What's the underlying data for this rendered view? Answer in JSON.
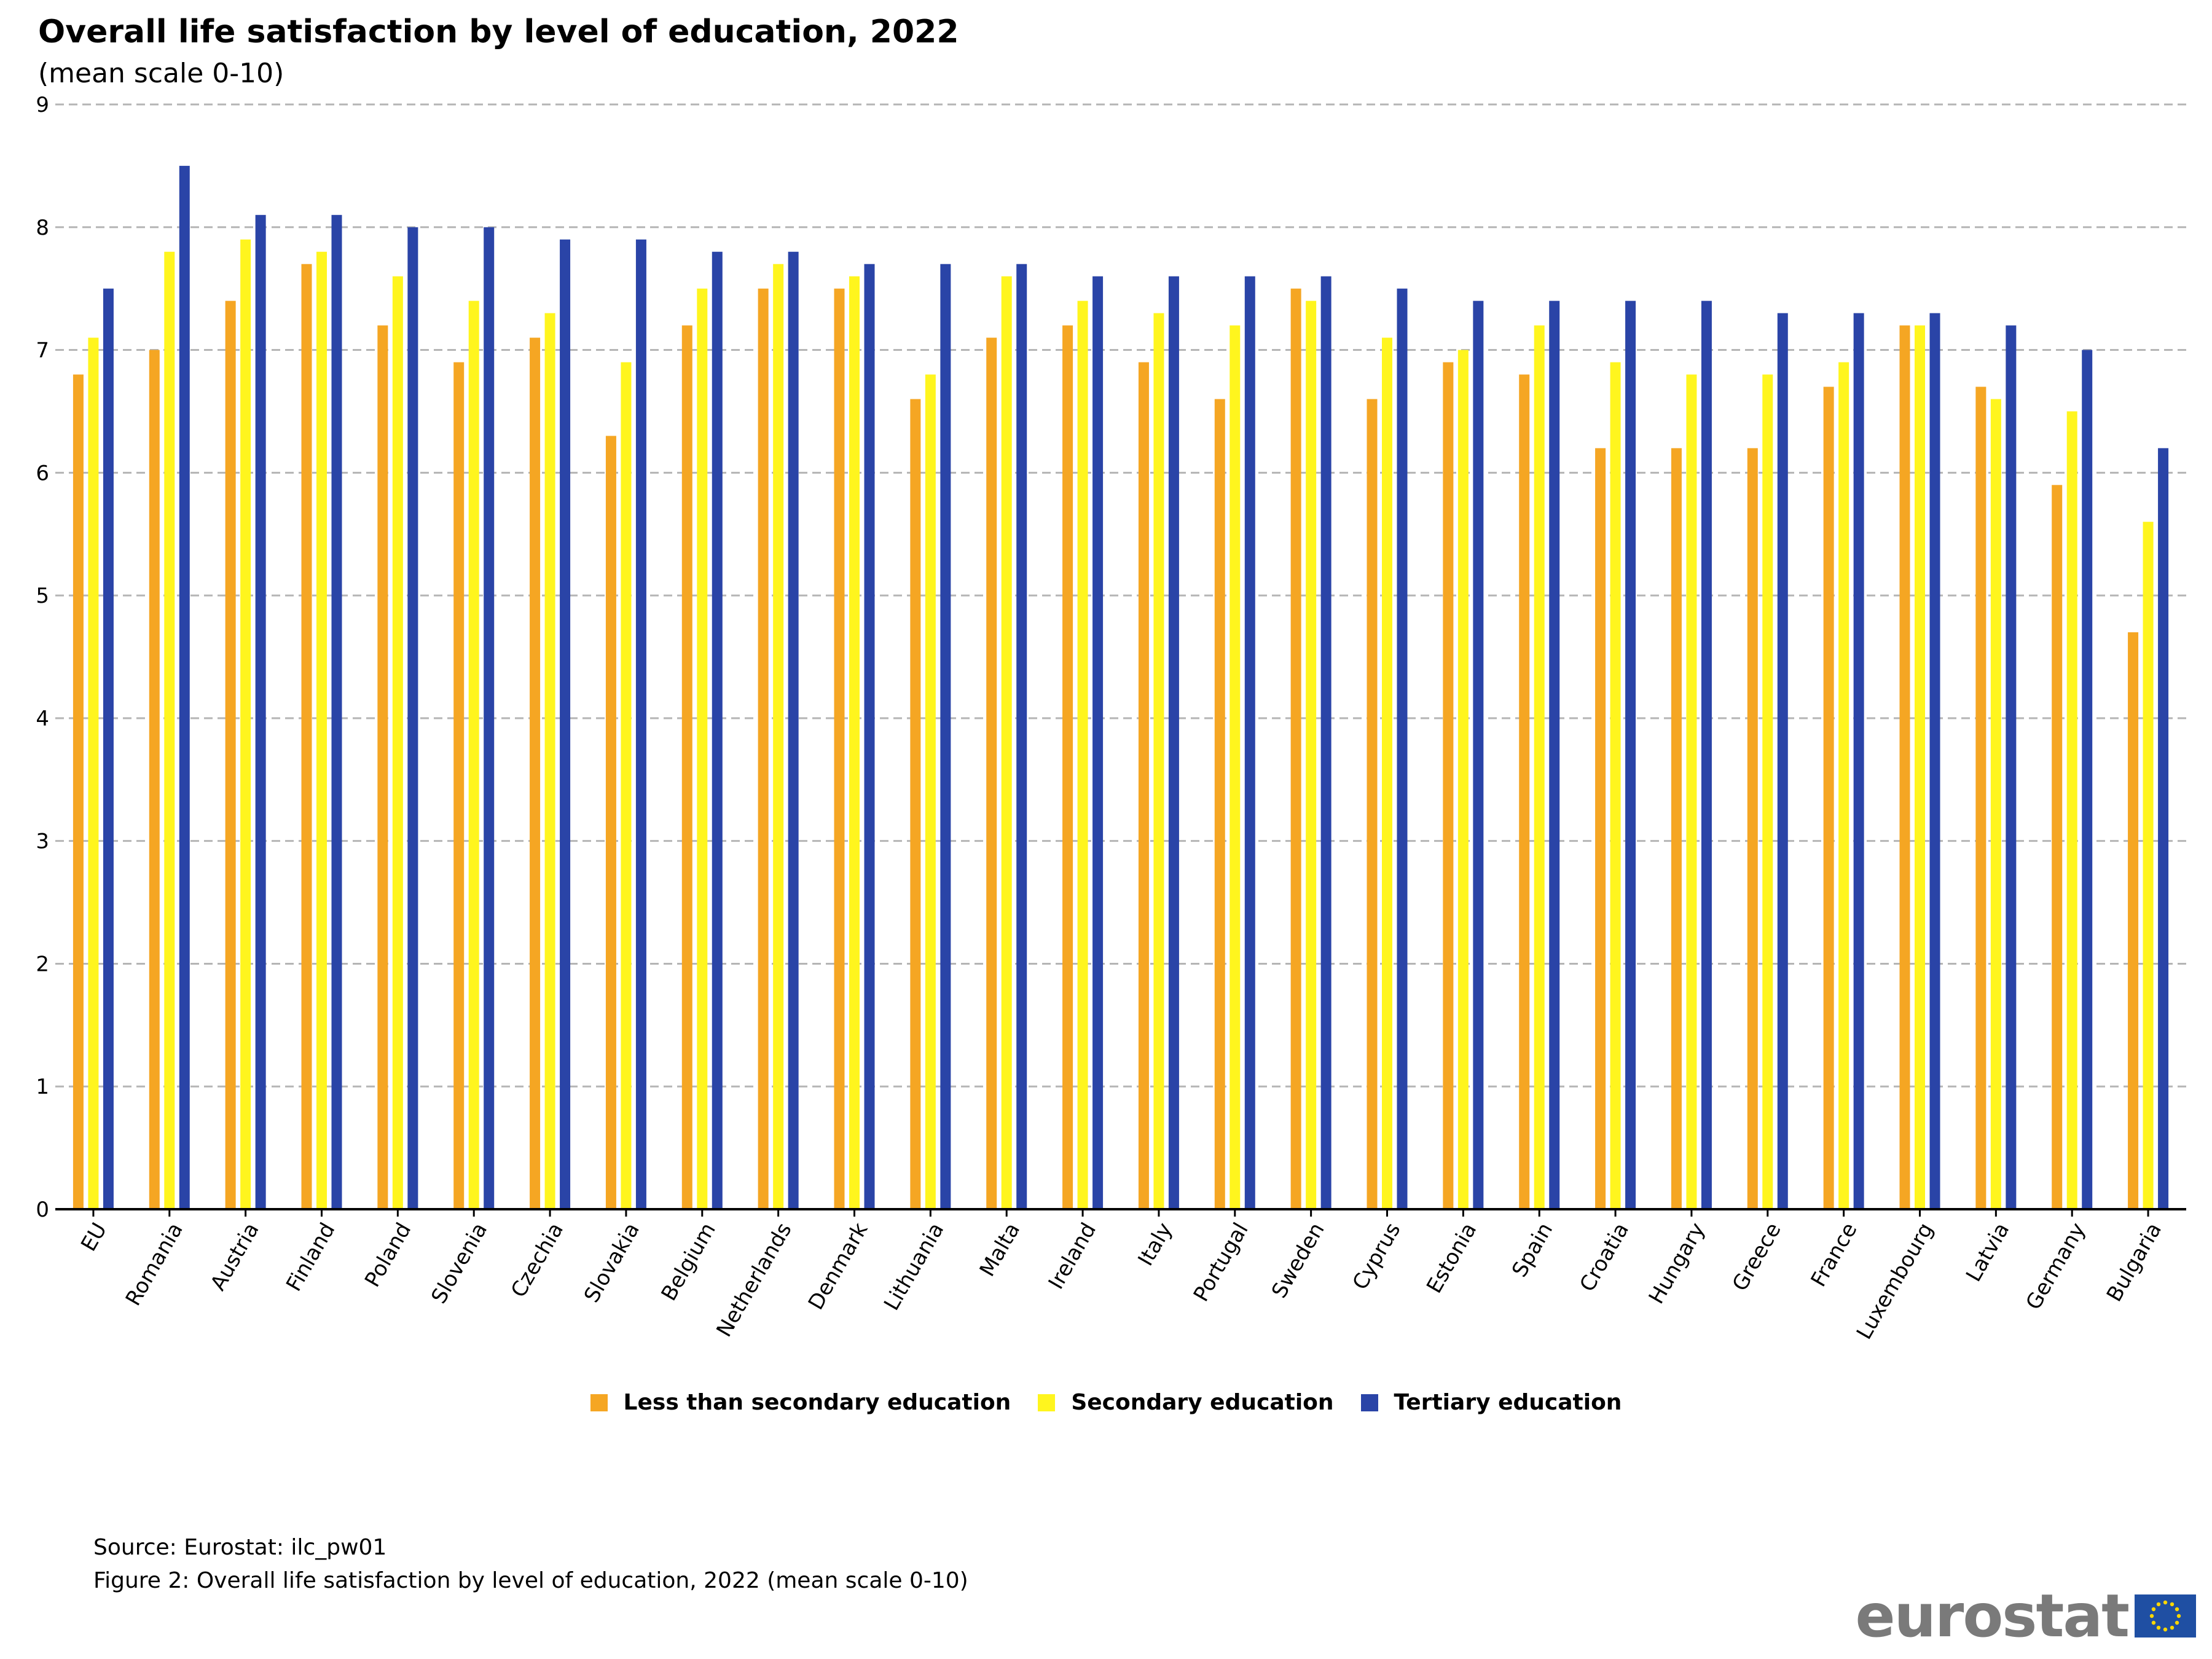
{
  "title": "Overall life satisfaction by level of education, 2022",
  "subtitle": "(mean scale 0-10)",
  "footer": {
    "source": "Source: Eurostat: ilc_pw01",
    "caption": "Figure 2: Overall life satisfaction by level of education, 2022 (mean scale 0-10)"
  },
  "logo": {
    "text": "eurostat"
  },
  "colors": {
    "less": "#F5A623",
    "secondary": "#FFF51E",
    "tertiary": "#2A44A7",
    "grid": "#b5b5b5"
  },
  "chart_data": {
    "type": "bar",
    "title": "Overall life satisfaction by level of education, 2022",
    "subtitle": "(mean scale 0-10)",
    "xlabel": "",
    "ylabel": "",
    "ylim": [
      0,
      9
    ],
    "yticks": [
      0,
      1,
      2,
      3,
      4,
      5,
      6,
      7,
      8,
      9
    ],
    "grid": true,
    "legend_position": "bottom",
    "categories": [
      "EU",
      "Romania",
      "Austria",
      "Finland",
      "Poland",
      "Slovenia",
      "Czechia",
      "Slovakia",
      "Belgium",
      "Netherlands",
      "Denmark",
      "Lithuania",
      "Malta",
      "Ireland",
      "Italy",
      "Portugal",
      "Sweden",
      "Cyprus",
      "Estonia",
      "Spain",
      "Croatia",
      "Hungary",
      "Greece",
      "France",
      "Luxembourg",
      "Latvia",
      "Germany",
      "Bulgaria"
    ],
    "series": [
      {
        "name": "Less than secondary education",
        "color": "#F5A623",
        "values": [
          6.8,
          7.0,
          7.4,
          7.7,
          7.2,
          6.9,
          7.1,
          6.3,
          7.2,
          7.5,
          7.5,
          6.6,
          7.1,
          7.2,
          6.9,
          6.6,
          7.5,
          6.6,
          6.9,
          6.8,
          6.2,
          6.2,
          6.2,
          6.7,
          7.2,
          6.7,
          5.9,
          4.7
        ]
      },
      {
        "name": "Secondary education",
        "color": "#FFF51E",
        "values": [
          7.1,
          7.8,
          7.9,
          7.8,
          7.6,
          7.4,
          7.3,
          6.9,
          7.5,
          7.7,
          7.6,
          6.8,
          7.6,
          7.4,
          7.3,
          7.2,
          7.4,
          7.1,
          7.0,
          7.2,
          6.9,
          6.8,
          6.8,
          6.9,
          7.2,
          6.6,
          6.5,
          5.6
        ]
      },
      {
        "name": "Tertiary education",
        "color": "#2A44A7",
        "values": [
          7.5,
          8.5,
          8.1,
          8.1,
          8.0,
          8.0,
          7.9,
          7.9,
          7.8,
          7.8,
          7.7,
          7.7,
          7.7,
          7.6,
          7.6,
          7.6,
          7.6,
          7.5,
          7.4,
          7.4,
          7.4,
          7.4,
          7.3,
          7.3,
          7.3,
          7.2,
          7.0,
          6.2
        ]
      }
    ]
  }
}
